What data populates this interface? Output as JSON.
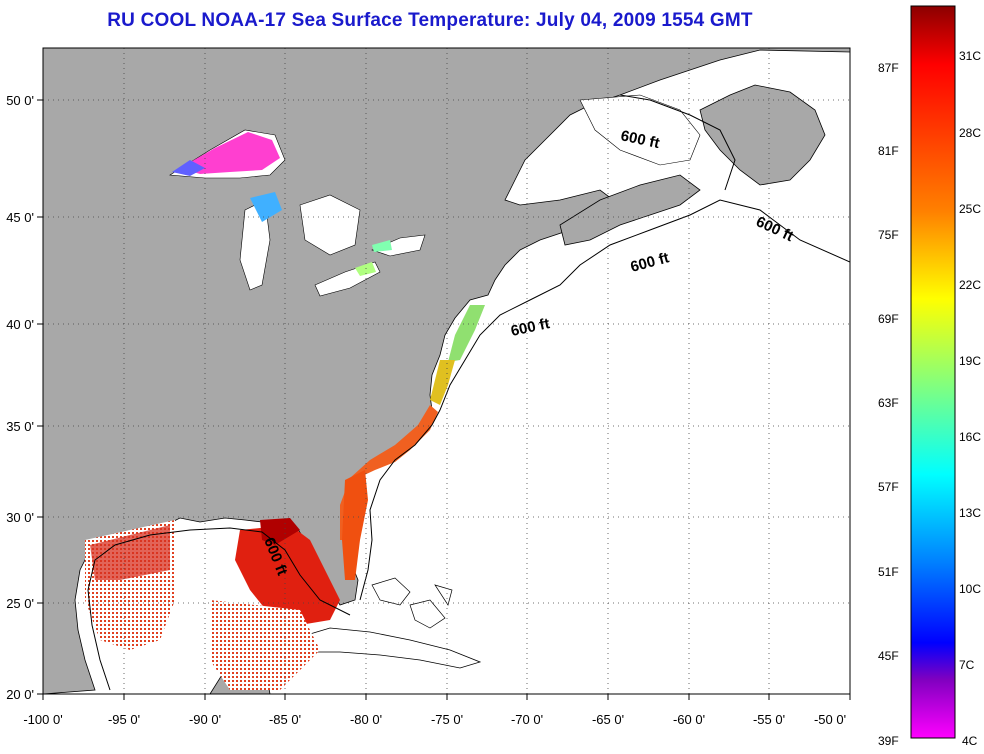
{
  "title": "RU COOL  NOAA-17  Sea Surface Temperature:  July 04, 2009 1554 GMT",
  "map": {
    "lon_range": [
      -100,
      -50
    ],
    "lat_range": [
      20,
      52
    ],
    "x_ticks": [
      "-100 0'",
      "-95 0'",
      "-90 0'",
      "-85 0'",
      "-80 0'",
      "-75 0'",
      "-70 0'",
      "-65 0'",
      "-60 0'",
      "-55 0'",
      "-50 0'"
    ],
    "y_ticks": [
      "20 0'",
      "25 0'",
      "30 0'",
      "35 0'",
      "40 0'",
      "45 0'",
      "50 0'"
    ],
    "grid": "dotted",
    "land_color": "#a8a8a8",
    "ocean_color": "#ffffff",
    "shelf_label": "600 ft",
    "shelf_labels": [
      "600 ft",
      "600 ft",
      "600 ft",
      "600 ft",
      "600 ft"
    ]
  },
  "colorbar": {
    "f_labels": [
      "87F",
      "81F",
      "75F",
      "69F",
      "63F",
      "57F",
      "51F",
      "45F",
      "39F"
    ],
    "c_labels": [
      "31C",
      "28C",
      "25C",
      "22C",
      "19C",
      "16C",
      "13C",
      "10C",
      "7C",
      "4C"
    ],
    "colors": [
      "#8b0000",
      "#ff0000",
      "#ff8000",
      "#ffff00",
      "#80ff80",
      "#00ffff",
      "#0080ff",
      "#0000ff",
      "#8000c0",
      "#ff00ff"
    ]
  }
}
